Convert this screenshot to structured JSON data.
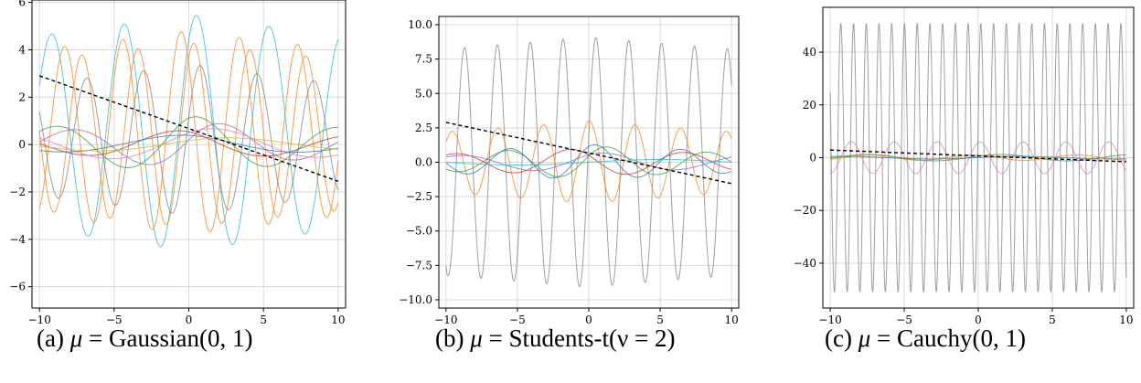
{
  "captions": [
    {
      "label": "(a)",
      "mu": "μ",
      "text": " = Gaussian(0, 1)"
    },
    {
      "label": "(b)",
      "mu": "μ",
      "text": " = Students-t(ν = 2)"
    },
    {
      "label": "(c)",
      "mu": "μ",
      "text": " = Cauchy(0, 1)"
    }
  ],
  "colors": {
    "blue": "#1f77b4",
    "orange": "#ff7f0e",
    "green": "#2ca02c",
    "red": "#d62728",
    "purple": "#9467bd",
    "brown": "#8c564b",
    "pink": "#e377c2",
    "gray": "#7f7f7f",
    "olive": "#bcbd22",
    "cyan": "#17becf",
    "trend": "#000000"
  },
  "chart_data": [
    {
      "type": "line",
      "title": "",
      "xlabel": "",
      "ylabel": "",
      "xlim": [
        -10.5,
        10.5
      ],
      "ylim": [
        -6.9,
        6.1
      ],
      "xticks": [
        -10,
        -5,
        0,
        5,
        10
      ],
      "xtick_labels": [
        "−10",
        "−5",
        "0",
        "5",
        "10"
      ],
      "yticks": [
        -6,
        -4,
        -2,
        0,
        2,
        4,
        6
      ],
      "ytick_labels": [
        "−6",
        "−4",
        "−2",
        "0",
        "2",
        "4",
        "6"
      ],
      "grid": true,
      "series": [
        {
          "color": "cyan",
          "kind": "sine",
          "amp": 5.0,
          "period": 4.85,
          "phase": 0.9,
          "center": 0.5,
          "decay": 0.02
        },
        {
          "color": "orange",
          "kind": "sine",
          "amp": 4.3,
          "period": 3.9,
          "phase": 2.4,
          "center": 0.5,
          "decay": 0.02
        },
        {
          "color": "orange",
          "kind": "sine",
          "amp": 3.9,
          "period": 3.75,
          "phase": 1.0,
          "center": 0.4,
          "decay": 0.02
        },
        {
          "color": "gray",
          "kind": "sine",
          "amp": 3.2,
          "period": 3.8,
          "phase": 0.3,
          "center": 0.2,
          "decay": 0.03
        },
        {
          "color": "green",
          "kind": "sine",
          "amp": 1.2,
          "period": 9.5,
          "phase": 1.2,
          "center": 0,
          "decay": 0.05
        },
        {
          "color": "purple",
          "kind": "sine",
          "amp": 1.0,
          "period": 10.0,
          "phase": 0.2,
          "center": 0,
          "decay": 0.06
        },
        {
          "color": "red",
          "kind": "sine",
          "amp": 0.6,
          "period": 12.0,
          "phase": 2.0,
          "center": 0,
          "decay": 0.04
        },
        {
          "color": "pink",
          "kind": "sine",
          "amp": 0.7,
          "period": 14.0,
          "phase": 0.8,
          "center": 0,
          "decay": 0.03
        },
        {
          "color": "blue",
          "kind": "sine",
          "amp": 0.4,
          "period": 16.0,
          "phase": 1.8,
          "center": 0,
          "decay": 0.03
        },
        {
          "color": "olive",
          "kind": "sine",
          "amp": 0.3,
          "period": 18.0,
          "phase": 0.6,
          "center": 0,
          "decay": 0.02
        },
        {
          "color": "trend",
          "kind": "linear",
          "x": [
            -10,
            10
          ],
          "y": [
            2.9,
            -1.55
          ],
          "dashed": true
        }
      ]
    },
    {
      "type": "line",
      "title": "",
      "xlabel": "",
      "ylabel": "",
      "xlim": [
        -10.5,
        10.5
      ],
      "ylim": [
        -10.6,
        10.6
      ],
      "xticks": [
        -10,
        -5,
        0,
        5,
        10
      ],
      "xtick_labels": [
        "−10",
        "−5",
        "0",
        "5",
        "10"
      ],
      "yticks": [
        -10,
        -7.5,
        -5,
        -2.5,
        0,
        2.5,
        5,
        7.5,
        10
      ],
      "ytick_labels": [
        "−10.0",
        "−7.5",
        "−5.0",
        "−2.5",
        "0.0",
        "2.5",
        "5.0",
        "7.5",
        "10.0"
      ],
      "grid": true,
      "series": [
        {
          "color": "gray",
          "kind": "sine",
          "amp": 9.1,
          "period": 2.3,
          "phase": 0.2,
          "center": 0,
          "decay": 0.01
        },
        {
          "color": "orange",
          "kind": "sine",
          "amp": 3.0,
          "period": 3.2,
          "phase": 1.5,
          "center": 0,
          "decay": 0.03
        },
        {
          "color": "green",
          "kind": "sine",
          "amp": 1.2,
          "period": 7.0,
          "phase": 0.4,
          "center": 0,
          "decay": 0.06
        },
        {
          "color": "red",
          "kind": "sine",
          "amp": 1.0,
          "period": 8.0,
          "phase": 2.6,
          "center": 0,
          "decay": 0.05
        },
        {
          "color": "blue",
          "kind": "sine",
          "amp": 1.3,
          "period": 6.0,
          "phase": 1.1,
          "center": 0,
          "decay": 0.05
        },
        {
          "color": "purple",
          "kind": "sine",
          "amp": 0.7,
          "period": 10.0,
          "phase": 0.9,
          "center": 0,
          "decay": 0.04
        },
        {
          "color": "cyan",
          "kind": "sine",
          "amp": 0.2,
          "period": 20.0,
          "phase": 0.0,
          "center": 0,
          "decay": 0.0
        },
        {
          "color": "trend",
          "kind": "linear",
          "x": [
            -10,
            10
          ],
          "y": [
            2.9,
            -1.55
          ],
          "dashed": true
        }
      ]
    },
    {
      "type": "line",
      "title": "",
      "xlabel": "",
      "ylabel": "",
      "xlim": [
        -10.5,
        10.5
      ],
      "ylim": [
        -57,
        57
      ],
      "xticks": [
        -10,
        -5,
        0,
        5,
        10
      ],
      "xtick_labels": [
        "−10",
        "−5",
        "0",
        "5",
        "10"
      ],
      "yticks": [
        -40,
        -20,
        0,
        20,
        40
      ],
      "ytick_labels": [
        "−40",
        "−20",
        "0",
        "20",
        "40"
      ],
      "grid": true,
      "series": [
        {
          "color": "gray",
          "kind": "sine",
          "amp": 51,
          "period": 0.86,
          "phase": 0.3,
          "center": 0,
          "decay": 0.0
        },
        {
          "color": "pink",
          "kind": "sine",
          "amp": 6.0,
          "period": 2.9,
          "phase": 1.3,
          "center": 0,
          "decay": 0.0
        },
        {
          "color": "green",
          "kind": "sine",
          "amp": 1.2,
          "period": 9.0,
          "phase": 0.5,
          "center": 0,
          "decay": 0.0
        },
        {
          "color": "orange",
          "kind": "sine",
          "amp": 1.0,
          "period": 7.0,
          "phase": 1.9,
          "center": 0,
          "decay": 0.0
        },
        {
          "color": "blue",
          "kind": "sine",
          "amp": 0.5,
          "period": 12.0,
          "phase": 0.1,
          "center": 0,
          "decay": 0.0
        },
        {
          "color": "trend",
          "kind": "linear",
          "x": [
            -10,
            10
          ],
          "y": [
            2.9,
            -1.55
          ],
          "dashed": true
        }
      ]
    }
  ]
}
